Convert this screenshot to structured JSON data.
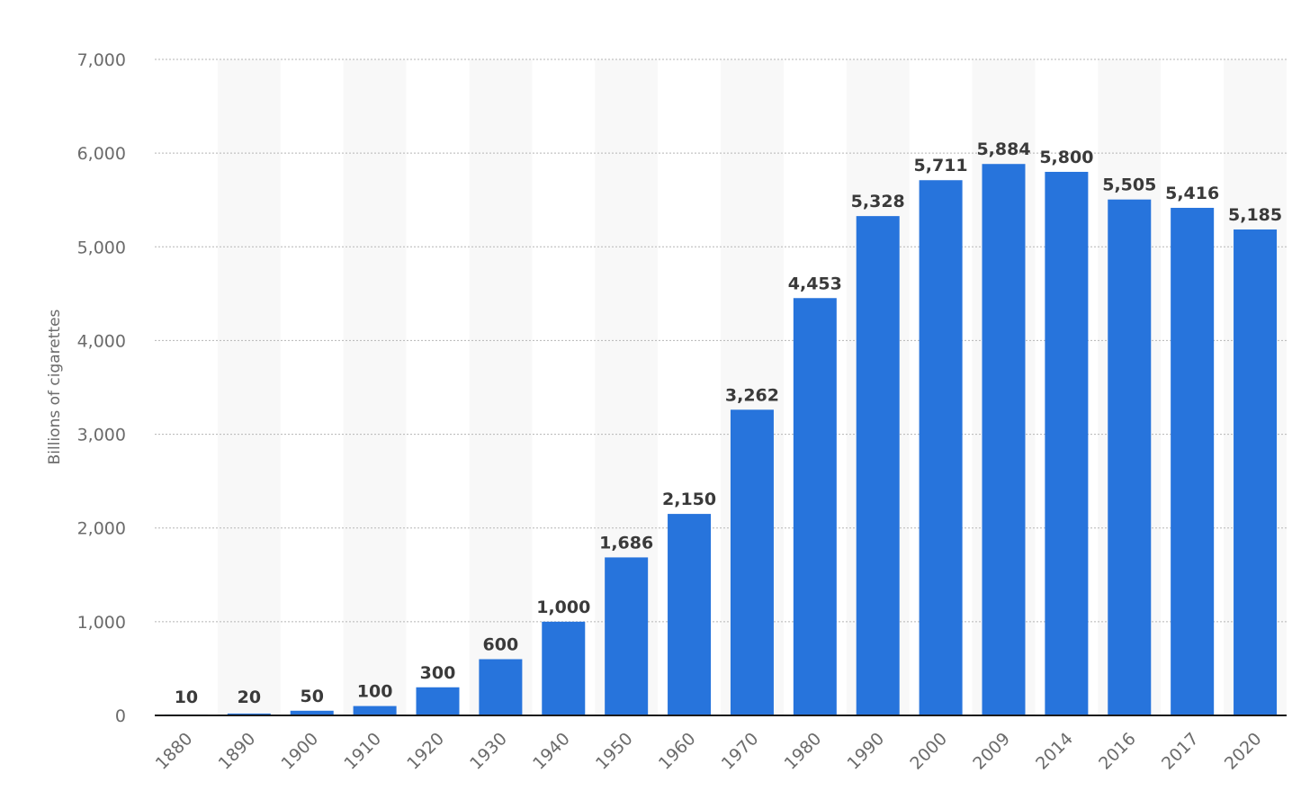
{
  "chart_data": {
    "type": "bar",
    "ylabel": "Billions of cigarettes",
    "xlabel": "",
    "ylim": [
      0,
      7000
    ],
    "yticks": [
      0,
      1000,
      2000,
      3000,
      4000,
      5000,
      6000,
      7000
    ],
    "ytick_labels": [
      "0",
      "1,000",
      "2,000",
      "3,000",
      "4,000",
      "5,000",
      "6,000",
      "7,000"
    ],
    "grid": true,
    "categories": [
      "1880",
      "1890",
      "1900",
      "1910",
      "1920",
      "1930",
      "1940",
      "1950",
      "1960",
      "1970",
      "1980",
      "1990",
      "2000",
      "2009",
      "2014",
      "2016",
      "2017",
      "2020"
    ],
    "values": [
      10,
      20,
      50,
      100,
      300,
      600,
      1000,
      1686,
      2150,
      3262,
      4453,
      5328,
      5711,
      5884,
      5800,
      5505,
      5416,
      5185
    ],
    "value_labels": [
      "10",
      "20",
      "50",
      "100",
      "300",
      "600",
      "1,000",
      "1,686",
      "2,150",
      "3,262",
      "4,453",
      "5,328",
      "5,711",
      "5,884",
      "5,800",
      "5,505",
      "5,416",
      "5,185"
    ],
    "bar_color": "#2774dc",
    "band_color": "#f8f8f8"
  }
}
